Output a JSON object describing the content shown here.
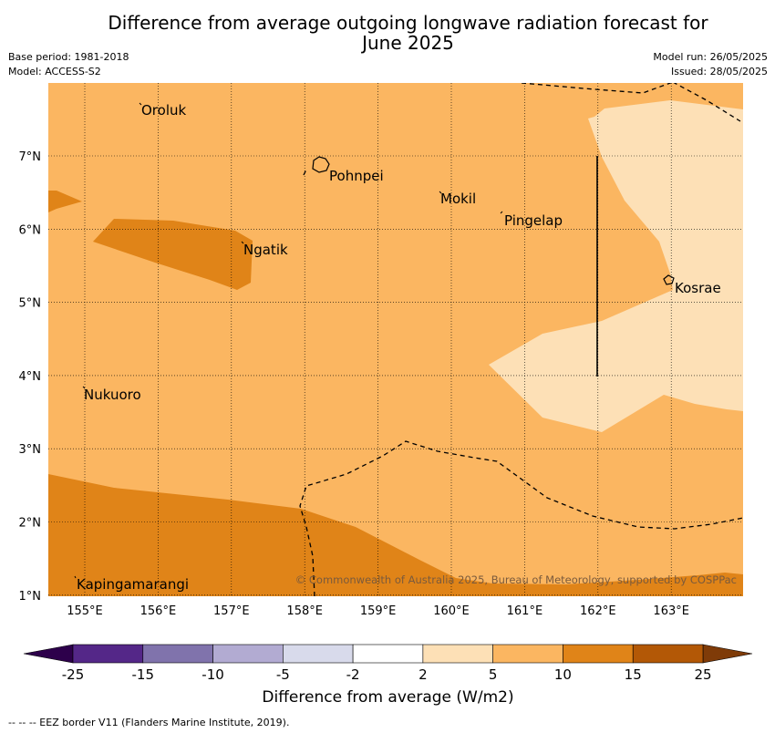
{
  "title_line1": "Difference from average outgoing longwave radiation forecast for",
  "title_line2": "June 2025",
  "meta": {
    "base_period": "Base period: 1981-2018",
    "model": "Model: ACCESS-S2",
    "model_run": "Model run: 26/05/2025",
    "issued": "Issued: 28/05/2025"
  },
  "map": {
    "lon_ticks": [
      "155°E",
      "156°E",
      "157°E",
      "158°E",
      "159°E",
      "160°E",
      "161°E",
      "162°E",
      "163°E"
    ],
    "lat_ticks": [
      "7°N",
      "6°N",
      "5°N",
      "4°N",
      "3°N",
      "2°N",
      "1°N"
    ],
    "places": [
      {
        "name": "Oroluk"
      },
      {
        "name": "Pohnpei"
      },
      {
        "name": "Mokil"
      },
      {
        "name": "Pingelap"
      },
      {
        "name": "Ngatik"
      },
      {
        "name": "Kosrae"
      },
      {
        "name": "Nukuoro"
      },
      {
        "name": "Kapingamarangi"
      }
    ],
    "copyright": "© Commonwealth of Australia 2025, Bureau of Meteorology, supported by COSPPac",
    "colors": {
      "bin_2_5": "#fde0b6",
      "bin_5_10": "#fbb661",
      "bin_10_15": "#e08418",
      "bin_15_25": "#b35806"
    }
  },
  "colorbar": {
    "ticks": [
      "-25",
      "-15",
      "-10",
      "-5",
      "-2",
      "2",
      "5",
      "10",
      "15",
      "25"
    ],
    "colors": [
      "#542788",
      "#8073ac",
      "#b2abd2",
      "#d8daeb",
      "#ffffff",
      "#fde0b6",
      "#fbb661",
      "#e08418",
      "#b35806"
    ],
    "under_color": "#2d004b",
    "over_color": "#7f3b08",
    "label": "Difference from average (W/m2)"
  },
  "footer": "--  --  -- EEZ border V11 (Flanders Marine Institute, 2019)."
}
